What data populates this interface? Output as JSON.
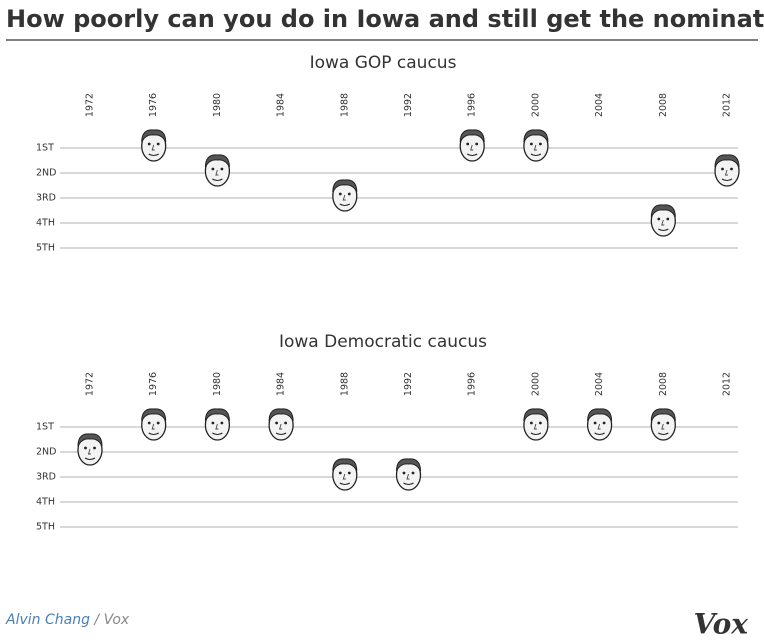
{
  "title": "How poorly can you do in Iowa and still get the nomination?",
  "chart_data": [
    {
      "type": "dot",
      "title": "Iowa GOP caucus",
      "categories": [
        "1972",
        "1976",
        "1980",
        "1984",
        "1988",
        "1992",
        "1996",
        "2000",
        "2004",
        "2008",
        "2012"
      ],
      "values": [
        null,
        1,
        2,
        null,
        3,
        null,
        1,
        1,
        null,
        4,
        2
      ],
      "ylim": [
        1,
        5
      ],
      "yticks": [
        {
          "value": 1,
          "label": "1ST"
        },
        {
          "value": 2,
          "label": "2ND"
        },
        {
          "value": 3,
          "label": "3RD"
        },
        {
          "value": 4,
          "label": "4TH"
        },
        {
          "value": 5,
          "label": "5TH"
        }
      ],
      "grid": true
    },
    {
      "type": "dot",
      "title": "Iowa Democratic caucus",
      "categories": [
        "1972",
        "1976",
        "1980",
        "1984",
        "1988",
        "1992",
        "1996",
        "2000",
        "2004",
        "2008",
        "2012"
      ],
      "values": [
        2,
        1,
        1,
        1,
        3,
        3,
        null,
        1,
        1,
        1,
        null
      ],
      "ylim": [
        1,
        5
      ],
      "yticks": [
        {
          "value": 1,
          "label": "1ST"
        },
        {
          "value": 2,
          "label": "2ND"
        },
        {
          "value": 3,
          "label": "3RD"
        },
        {
          "value": 4,
          "label": "4TH"
        },
        {
          "value": 5,
          "label": "5TH"
        }
      ],
      "grid": true
    }
  ],
  "credit": {
    "author": "Alvin Chang",
    "separator": "/",
    "outlet": "Vox"
  },
  "logo": "Vox"
}
